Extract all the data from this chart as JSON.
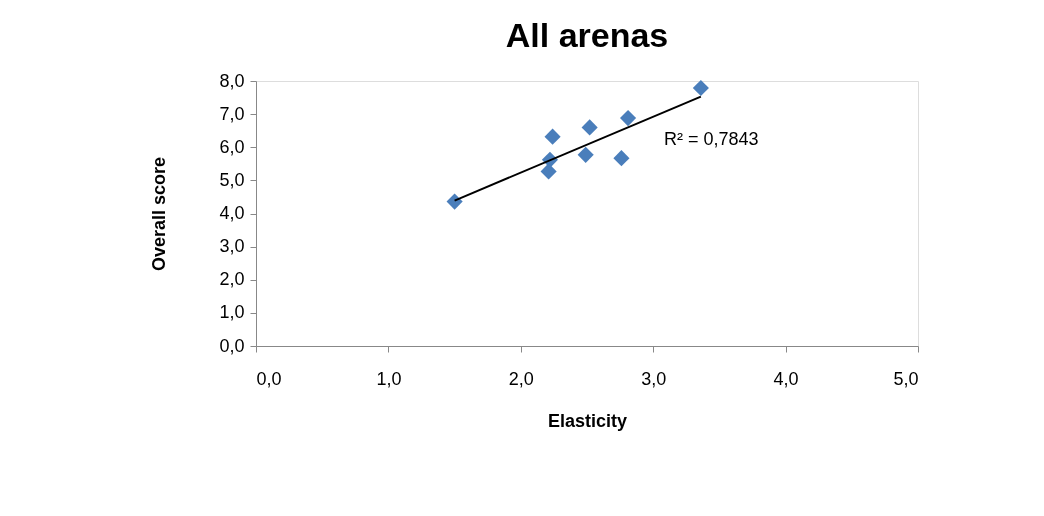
{
  "chart_data": {
    "type": "scatter",
    "title": "All arenas",
    "xlabel": "Elasticity",
    "ylabel": "Overall score",
    "series": [
      {
        "type": "scatter",
        "color": "#4a7ebb",
        "marker": "diamond",
        "x": [
          1.5,
          2.24,
          2.22,
          2.21,
          2.52,
          2.49,
          2.76,
          2.81,
          3.36
        ],
        "values": [
          4.36,
          6.32,
          5.62,
          5.27,
          6.6,
          5.77,
          5.67,
          6.88,
          7.79
        ]
      },
      {
        "type": "line",
        "color": "#000000",
        "marker": "none",
        "x": [
          1.5,
          3.36
        ],
        "values": [
          4.39,
          7.53
        ]
      }
    ],
    "annotations": [
      "R² = 0,7843"
    ],
    "xlim": [
      0,
      5
    ],
    "ylim": [
      0,
      8
    ],
    "xticks": [
      {
        "value": 0,
        "label": "0,0"
      },
      {
        "value": 1,
        "label": "1,0"
      },
      {
        "value": 2,
        "label": "2,0"
      },
      {
        "value": 3,
        "label": "3,0"
      },
      {
        "value": 4,
        "label": "4,0"
      },
      {
        "value": 5,
        "label": "5,0"
      }
    ],
    "yticks": [
      {
        "value": 0,
        "label": "0,0"
      },
      {
        "value": 1,
        "label": "1,0"
      },
      {
        "value": 2,
        "label": "2,0"
      },
      {
        "value": 3,
        "label": "3,0"
      },
      {
        "value": 4,
        "label": "4,0"
      },
      {
        "value": 5,
        "label": "5,0"
      },
      {
        "value": 6,
        "label": "6,0"
      },
      {
        "value": 7,
        "label": "7,0"
      },
      {
        "value": 8,
        "label": "8,0"
      }
    ],
    "grid": false
  }
}
